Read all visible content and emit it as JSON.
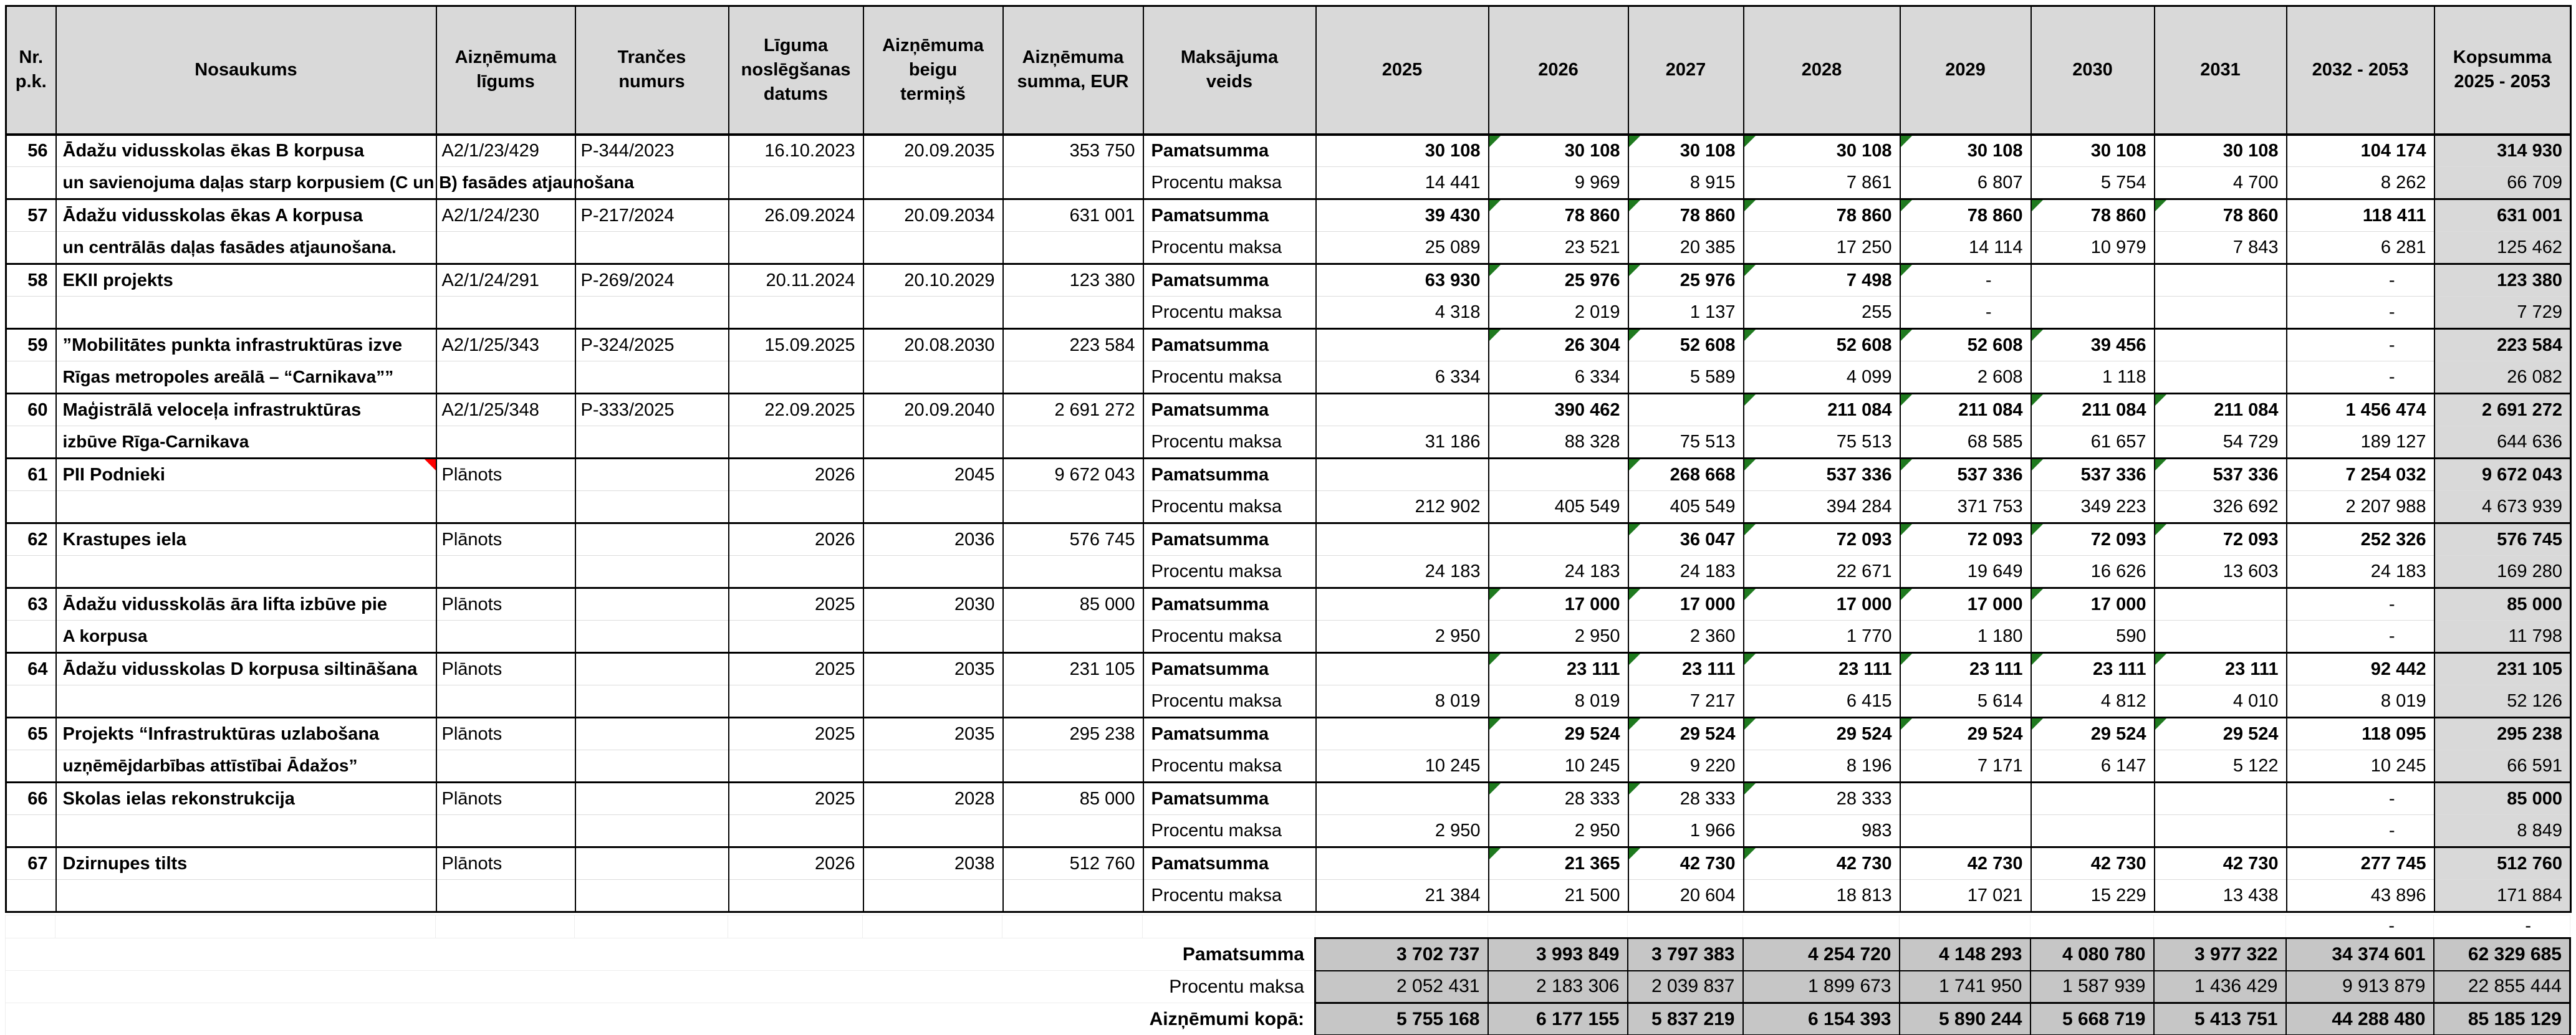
{
  "columns": [
    "Nr.\np.k.",
    "Nosaukums",
    "Aizņēmuma\nlīgums",
    "Trančes\nnumurs",
    "Līguma\nnoslēgšanas\ndatums",
    "Aizņēmuma\nbeigu\ntermiņš",
    "Aizņēmuma\nsumma, EUR",
    "Maksājuma\nveids",
    "2025",
    "2026",
    "2027",
    "2028",
    "2029",
    "2030",
    "2031",
    "2032 - 2053",
    "Kopsumma\n2025 - 2053"
  ],
  "row_labels": {
    "pamatsumma": "Pamatsumma",
    "procentu_maksa": "Procentu maksa"
  },
  "loans": [
    {
      "nr": "56",
      "name1": "Ādažu vidusskolas ēkas B korpusa",
      "name2": "un savienojuma daļas starp korpusiem (C un B) fasādes atjaunošana",
      "ligums": "A2/1/23/429",
      "trance": "P-344/2023",
      "datums": "16.10.2023",
      "termins": "20.09.2035",
      "summa": "353 750",
      "pam": [
        "30 108",
        "30 108",
        "30 108",
        "30 108",
        "30 108",
        "30 108",
        "30 108",
        "104 174"
      ],
      "pam_kop": "314 930",
      "pam_markers": [
        1,
        2,
        3,
        4
      ],
      "proc": [
        "14 441",
        "9 969",
        "8 915",
        "7 861",
        "6 807",
        "5 754",
        "4 700",
        "8 262"
      ],
      "proc_kop": "66 709"
    },
    {
      "nr": "57",
      "name1": "Ādažu vidusskolas ēkas A korpusa",
      "name2": "un centrālās daļas fasādes atjaunošana.",
      "ligums": "A2/1/24/230",
      "trance": "P-217/2024",
      "datums": "26.09.2024",
      "termins": "20.09.2034",
      "summa": "631 001",
      "pam": [
        "39 430",
        "78 860",
        "78 860",
        "78 860",
        "78 860",
        "78 860",
        "78 860",
        "118 411"
      ],
      "pam_kop": "631 001",
      "pam_markers": [
        1,
        2,
        3,
        4,
        5,
        6
      ],
      "proc": [
        "25 089",
        "23 521",
        "20 385",
        "17 250",
        "14 114",
        "10 979",
        "7 843",
        "6 281"
      ],
      "proc_kop": "125 462"
    },
    {
      "nr": "58",
      "name1": "EKII projekts",
      "name2": "",
      "ligums": "A2/1/24/291",
      "trance": "P-269/2024",
      "datums": "20.11.2024",
      "termins": "20.10.2029",
      "summa": "123 380",
      "pam": [
        "63 930",
        "25 976",
        "25 976",
        "7 498",
        "-",
        "",
        "",
        "-"
      ],
      "pam_kop": "123 380",
      "pam_markers": [
        1,
        2,
        3,
        4
      ],
      "proc": [
        "4 318",
        "2 019",
        "1 137",
        "255",
        "-",
        "",
        "",
        "-"
      ],
      "proc_kop": "7 729"
    },
    {
      "nr": "59",
      "name1": "”Mobilitātes punkta infrastruktūras izve",
      "name2": "Rīgas metropoles areālā – “Carnikava””",
      "ligums": "A2/1/25/343",
      "trance": "P-324/2025",
      "datums": "15.09.2025",
      "termins": "20.08.2030",
      "summa": "223 584",
      "pam": [
        "",
        "26 304",
        "52 608",
        "52 608",
        "52 608",
        "39 456",
        "",
        "-"
      ],
      "pam_kop": "223 584",
      "pam_markers": [
        1,
        2,
        3,
        4,
        5
      ],
      "proc": [
        "6 334",
        "6 334",
        "5 589",
        "4 099",
        "2 608",
        "1 118",
        "",
        "-"
      ],
      "proc_kop": "26 082"
    },
    {
      "nr": "60",
      "name1": "Maģistrālā veloceļa infrastruktūras",
      "name2": "izbūve Rīga-Carnikava",
      "ligums": "A2/1/25/348",
      "trance": "P-333/2025",
      "datums": "22.09.2025",
      "termins": "20.09.2040",
      "summa": "2 691 272",
      "pam": [
        "",
        "390 462",
        "",
        "211 084",
        "211 084",
        "211 084",
        "211 084",
        "1 456 474"
      ],
      "pam_kop": "2 691 272",
      "pam_markers": [
        3,
        4,
        5,
        6
      ],
      "proc": [
        "31 186",
        "88 328",
        "75 513",
        "75 513",
        "68 585",
        "61 657",
        "54 729",
        "189 127"
      ],
      "proc_kop": "644 636"
    },
    {
      "nr": "61",
      "name1": "PII Podnieki",
      "name2": "",
      "red_marker": true,
      "ligums": "Plānots",
      "trance": "",
      "datums": "2026",
      "termins": "2045",
      "summa": "9 672 043",
      "pam": [
        "",
        "",
        "268 668",
        "537 336",
        "537 336",
        "537 336",
        "537 336",
        "7 254 032"
      ],
      "pam_kop": "9 672 043",
      "pam_markers": [
        2,
        3,
        4,
        5,
        6
      ],
      "proc": [
        "212 902",
        "405 549",
        "405 549",
        "394 284",
        "371 753",
        "349 223",
        "326 692",
        "2 207 988"
      ],
      "proc_kop": "4 673 939"
    },
    {
      "nr": "62",
      "name1": "Krastupes iela",
      "name2": "",
      "ligums": "Plānots",
      "trance": "",
      "datums": "2026",
      "termins": "2036",
      "summa": "576 745",
      "pam": [
        "",
        "",
        "36 047",
        "72 093",
        "72 093",
        "72 093",
        "72 093",
        "252 326"
      ],
      "pam_kop": "576 745",
      "pam_markers": [
        2,
        3,
        4,
        5,
        6
      ],
      "proc": [
        "24 183",
        "24 183",
        "24 183",
        "22 671",
        "19 649",
        "16 626",
        "13 603",
        "24 183"
      ],
      "proc_kop": "169 280"
    },
    {
      "nr": "63",
      "name1": "Ādažu vidusskolās āra lifta izbūve pie",
      "name2": "A korpusa",
      "ligums": "Plānots",
      "trance": "",
      "datums": "2025",
      "termins": "2030",
      "summa": "85 000",
      "pam": [
        "",
        "17 000",
        "17 000",
        "17 000",
        "17 000",
        "17 000",
        "",
        "-"
      ],
      "pam_kop": "85 000",
      "pam_markers": [
        1,
        2,
        3,
        4,
        5
      ],
      "proc": [
        "2 950",
        "2 950",
        "2 360",
        "1 770",
        "1 180",
        "590",
        "",
        "-"
      ],
      "proc_kop": "11 798"
    },
    {
      "nr": "64",
      "name1": "Ādažu vidusskolas D korpusa siltināšana",
      "name2": "",
      "ligums": "Plānots",
      "trance": "",
      "datums": "2025",
      "termins": "2035",
      "summa": "231 105",
      "pam": [
        "",
        "23 111",
        "23 111",
        "23 111",
        "23 111",
        "23 111",
        "23 111",
        "92 442"
      ],
      "pam_kop": "231 105",
      "pam_markers": [
        1,
        2,
        3,
        4,
        5,
        6
      ],
      "proc": [
        "8 019",
        "8 019",
        "7 217",
        "6 415",
        "5 614",
        "4 812",
        "4 010",
        "8 019"
      ],
      "proc_kop": "52 126"
    },
    {
      "nr": "65",
      "name1": "Projekts “Infrastruktūras uzlabošana",
      "name2": "uzņēmējdarbības attīstībai Ādažos”",
      "ligums": "Plānots",
      "trance": "",
      "datums": "2025",
      "termins": "2035",
      "summa": "295 238",
      "pam": [
        "",
        "29 524",
        "29 524",
        "29 524",
        "29 524",
        "29 524",
        "29 524",
        "118 095"
      ],
      "pam_kop": "295 238",
      "pam_markers": [
        1,
        2,
        3,
        4,
        5,
        6
      ],
      "proc": [
        "10 245",
        "10 245",
        "9 220",
        "8 196",
        "7 171",
        "6 147",
        "5 122",
        "10 245"
      ],
      "proc_kop": "66 591"
    },
    {
      "nr": "66",
      "name1": "Skolas ielas rekonstrukcija",
      "name2": "",
      "pam_regular": true,
      "ligums": "Plānots",
      "trance": "",
      "datums": "2025",
      "termins": "2028",
      "summa": "85 000",
      "pam": [
        "",
        "28 333",
        "28 333",
        "28 333",
        "",
        "",
        "",
        "-"
      ],
      "pam_kop": "85 000",
      "pam_markers": [
        1,
        2,
        3
      ],
      "proc": [
        "2 950",
        "2 950",
        "1 966",
        "983",
        "",
        "",
        "",
        "-"
      ],
      "proc_kop": "8 849"
    },
    {
      "nr": "67",
      "name1": "Dzirnupes tilts",
      "name2": "",
      "ligums": "Plānots",
      "trance": "",
      "datums": "2026",
      "termins": "2038",
      "summa": "512 760",
      "pam": [
        "",
        "21 365",
        "42 730",
        "42 730",
        "42 730",
        "42 730",
        "42 730",
        "277 745"
      ],
      "pam_kop": "512 760",
      "pam_markers": [
        1,
        2,
        3
      ],
      "proc": [
        "21 384",
        "21 500",
        "20 604",
        "18 813",
        "17 021",
        "15 229",
        "13 438",
        "43 896"
      ],
      "proc_kop": "171 884"
    }
  ],
  "spacer": {
    "dash_2032_2053": "-",
    "dash_kopsumma": "-"
  },
  "totals": {
    "rows": [
      {
        "label": "Pamatsumma",
        "bold": true,
        "values": [
          "3 702 737",
          "3 993 849",
          "3 797 383",
          "4 254 720",
          "4 148 293",
          "4 080 780",
          "3 977 322",
          "34 374 601",
          "62 329 685"
        ]
      },
      {
        "label": "Procentu maksa",
        "bold": false,
        "values": [
          "2 052 431",
          "2 183 306",
          "2 039 837",
          "1 899 673",
          "1 741 950",
          "1 587 939",
          "1 436 429",
          "9 913 879",
          "22 855 444"
        ]
      },
      {
        "label": "Aizņēmumi kopā:",
        "bold": true,
        "is_grand_total": true,
        "values": [
          "5 755 168",
          "6 177 155",
          "5 837 219",
          "6 154 393",
          "5 890 244",
          "5 668 719",
          "5 413 751",
          "44 288 480",
          "85 185 129"
        ]
      }
    ]
  },
  "colors": {
    "header_bg": "#d9d9d9",
    "kopsumma_bg": "#d9d9d9",
    "totals_bg": "#c6c6c6",
    "border": "#000000",
    "marker_green": "#1f7a1f",
    "marker_red": "#ff0000"
  }
}
